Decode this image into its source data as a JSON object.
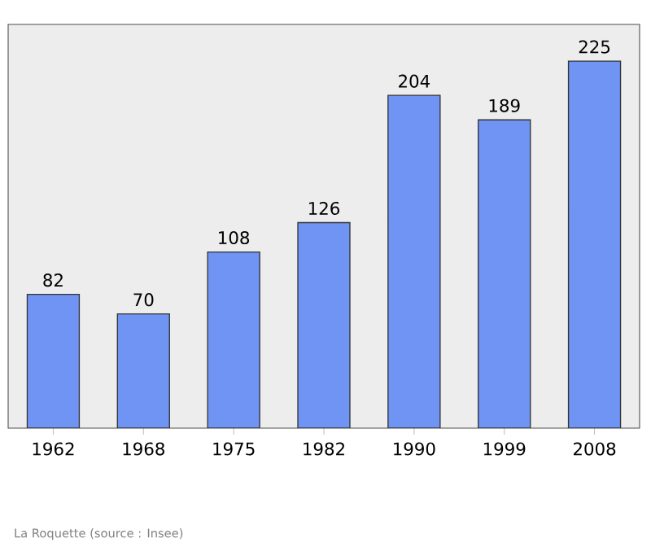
{
  "chart_data": {
    "type": "bar",
    "categories": [
      "1962",
      "1968",
      "1975",
      "1982",
      "1990",
      "1999",
      "2008"
    ],
    "values": [
      82,
      70,
      108,
      126,
      204,
      189,
      225
    ],
    "color": "#7094f4",
    "data_labels": true,
    "annotations": [
      "La Roquette    (source : Insee)"
    ]
  }
}
